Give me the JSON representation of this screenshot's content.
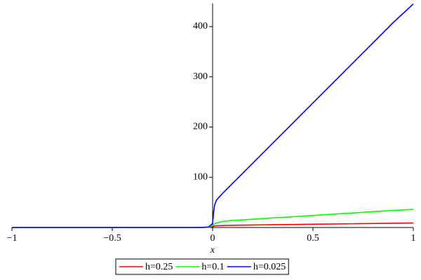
{
  "chart_data": {
    "type": "line",
    "xlabel": "x",
    "x": [
      -1,
      -0.5,
      -0.2,
      -0.1,
      -0.05,
      -0.02,
      0,
      0.005,
      0.01,
      0.02,
      0.05,
      0.1,
      0.2,
      0.3,
      0.5,
      0.7,
      0.9,
      1
    ],
    "series": [
      {
        "name": "h=0.25",
        "color": "#ff0000",
        "values": [
          0,
          0,
          0,
          0.05,
          0.2,
          0.5,
          2,
          2.5,
          3,
          3.5,
          4,
          4.5,
          5,
          5.5,
          6.5,
          7.5,
          8.5,
          9
        ]
      },
      {
        "name": "h=0.1",
        "color": "#00ff00",
        "values": [
          0,
          0,
          0,
          0,
          0.1,
          0.5,
          4,
          6,
          7.5,
          9,
          12,
          14,
          16.5,
          19,
          24,
          29,
          34,
          36
        ]
      },
      {
        "name": "h=0.025",
        "color": "#0000ff",
        "values": [
          0,
          0,
          0,
          0,
          0.2,
          1,
          8,
          30,
          45,
          55,
          68,
          88,
          128,
          168,
          248,
          328,
          408,
          445
        ]
      }
    ],
    "xlim": [
      -1,
      1
    ],
    "ylim": [
      0,
      446
    ],
    "xticks": [
      {
        "value": -1,
        "label": "−1"
      },
      {
        "value": -0.5,
        "label": "−0.5"
      },
      0,
      0.5,
      1
    ],
    "yticks": [
      100,
      200,
      300,
      400
    ],
    "legend": "bottom"
  }
}
